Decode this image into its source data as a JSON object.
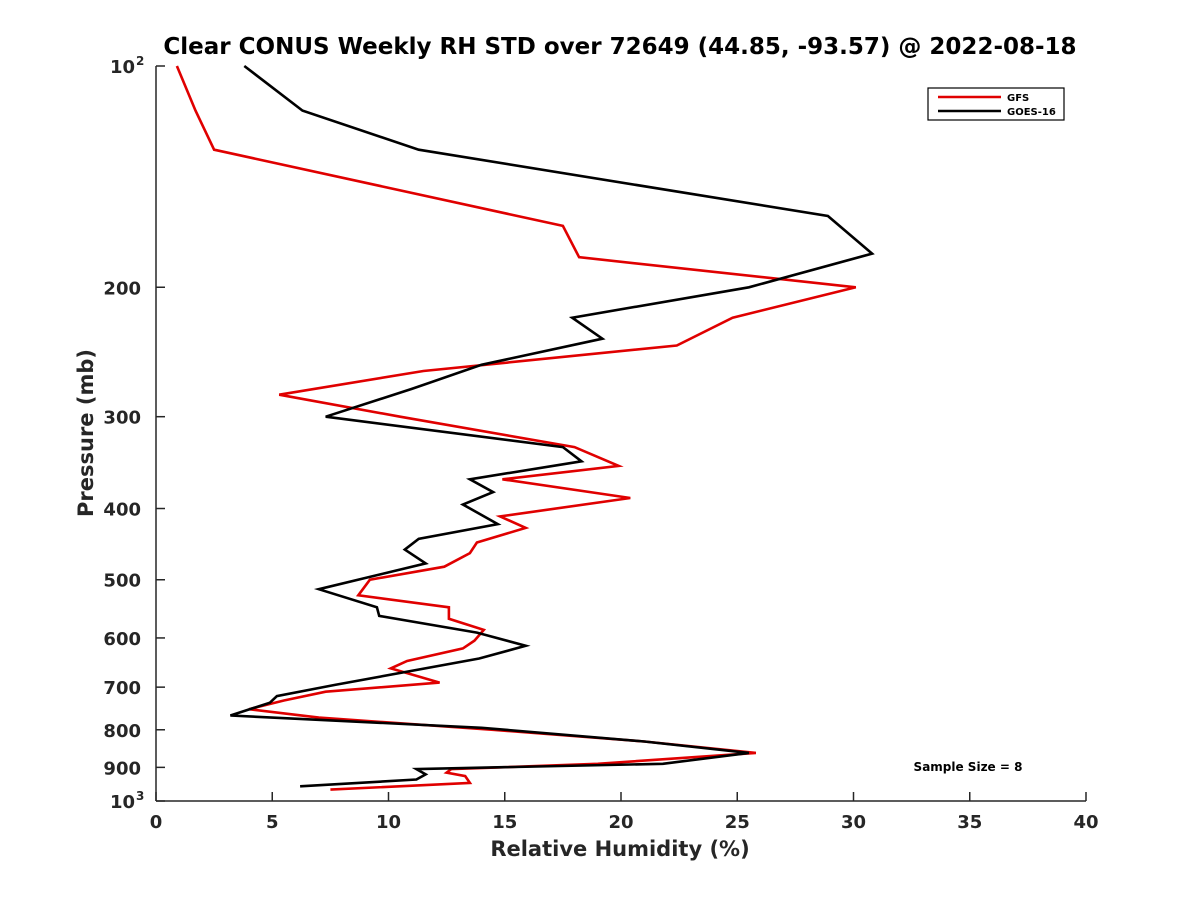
{
  "chart_data": {
    "type": "line",
    "title": "Clear CONUS Weekly RH STD over 72649 (44.85, -93.57) @ 2022-08-18",
    "xlabel": "Relative Humidity (%)",
    "ylabel": "Pressure (mb)",
    "xlim": [
      0,
      40
    ],
    "ylim": [
      100,
      1000
    ],
    "y_scale": "log",
    "y_reversed": true,
    "x_ticks": [
      0,
      5,
      10,
      15,
      20,
      25,
      30,
      35,
      40
    ],
    "x_tick_labels": [
      "0",
      "5",
      "10",
      "15",
      "20",
      "25",
      "30",
      "35",
      "40"
    ],
    "y_ticks": [
      100,
      200,
      300,
      400,
      500,
      600,
      700,
      800,
      900,
      1000
    ],
    "y_tick_labels": [
      {
        "base": "10",
        "exp": "2"
      },
      {
        "base": "200",
        "exp": ""
      },
      {
        "base": "300",
        "exp": ""
      },
      {
        "base": "400",
        "exp": ""
      },
      {
        "base": "500",
        "exp": ""
      },
      {
        "base": "600",
        "exp": ""
      },
      {
        "base": "700",
        "exp": ""
      },
      {
        "base": "800",
        "exp": ""
      },
      {
        "base": "900",
        "exp": ""
      },
      {
        "base": "10",
        "exp": "3"
      }
    ],
    "grid": false,
    "legend_position": "top-right",
    "annotation": "Sample Size = 8",
    "series": [
      {
        "name": "GFS",
        "color": "#e00000",
        "points": [
          [
            0.9,
            100
          ],
          [
            1.7,
            115
          ],
          [
            2.5,
            130
          ],
          [
            17.5,
            165
          ],
          [
            18.2,
            182
          ],
          [
            30.1,
            200
          ],
          [
            24.8,
            220
          ],
          [
            22.4,
            240
          ],
          [
            11.5,
            260
          ],
          [
            5.3,
            280
          ],
          [
            10.5,
            300
          ],
          [
            18.0,
            330
          ],
          [
            19.9,
            350
          ],
          [
            14.9,
            365
          ],
          [
            20.4,
            387
          ],
          [
            14.8,
            410
          ],
          [
            15.9,
            425
          ],
          [
            13.8,
            445
          ],
          [
            13.5,
            460
          ],
          [
            12.4,
            480
          ],
          [
            9.2,
            500
          ],
          [
            8.7,
            525
          ],
          [
            12.6,
            545
          ],
          [
            12.6,
            565
          ],
          [
            14.1,
            585
          ],
          [
            13.7,
            605
          ],
          [
            13.2,
            620
          ],
          [
            10.8,
            645
          ],
          [
            10.1,
            660
          ],
          [
            12.2,
            690
          ],
          [
            7.3,
            710
          ],
          [
            5.5,
            730
          ],
          [
            4.0,
            750
          ],
          [
            7.0,
            770
          ],
          [
            14.5,
            800
          ],
          [
            21.0,
            830
          ],
          [
            25.8,
            860
          ],
          [
            19.0,
            890
          ],
          [
            12.7,
            905
          ],
          [
            12.5,
            915
          ],
          [
            13.3,
            925
          ],
          [
            13.5,
            945
          ],
          [
            7.5,
            965
          ]
        ]
      },
      {
        "name": "GOES-16",
        "color": "#000000",
        "points": [
          [
            3.8,
            100
          ],
          [
            6.3,
            115
          ],
          [
            11.3,
            130
          ],
          [
            28.9,
            160
          ],
          [
            30.8,
            180
          ],
          [
            25.5,
            200
          ],
          [
            17.9,
            220
          ],
          [
            19.2,
            235
          ],
          [
            14.0,
            255
          ],
          [
            11.0,
            275
          ],
          [
            7.3,
            300
          ],
          [
            17.5,
            330
          ],
          [
            18.3,
            345
          ],
          [
            13.5,
            365
          ],
          [
            14.5,
            380
          ],
          [
            13.2,
            395
          ],
          [
            14.7,
            420
          ],
          [
            11.3,
            440
          ],
          [
            10.7,
            455
          ],
          [
            11.6,
            475
          ],
          [
            7.0,
            515
          ],
          [
            9.5,
            545
          ],
          [
            9.6,
            560
          ],
          [
            13.8,
            590
          ],
          [
            15.9,
            615
          ],
          [
            13.9,
            640
          ],
          [
            7.7,
            695
          ],
          [
            5.2,
            720
          ],
          [
            4.9,
            735
          ],
          [
            3.2,
            765
          ],
          [
            14.0,
            795
          ],
          [
            21.0,
            830
          ],
          [
            25.5,
            860
          ],
          [
            21.8,
            890
          ],
          [
            11.2,
            905
          ],
          [
            11.6,
            920
          ],
          [
            11.2,
            935
          ],
          [
            6.2,
            955
          ]
        ]
      }
    ]
  }
}
